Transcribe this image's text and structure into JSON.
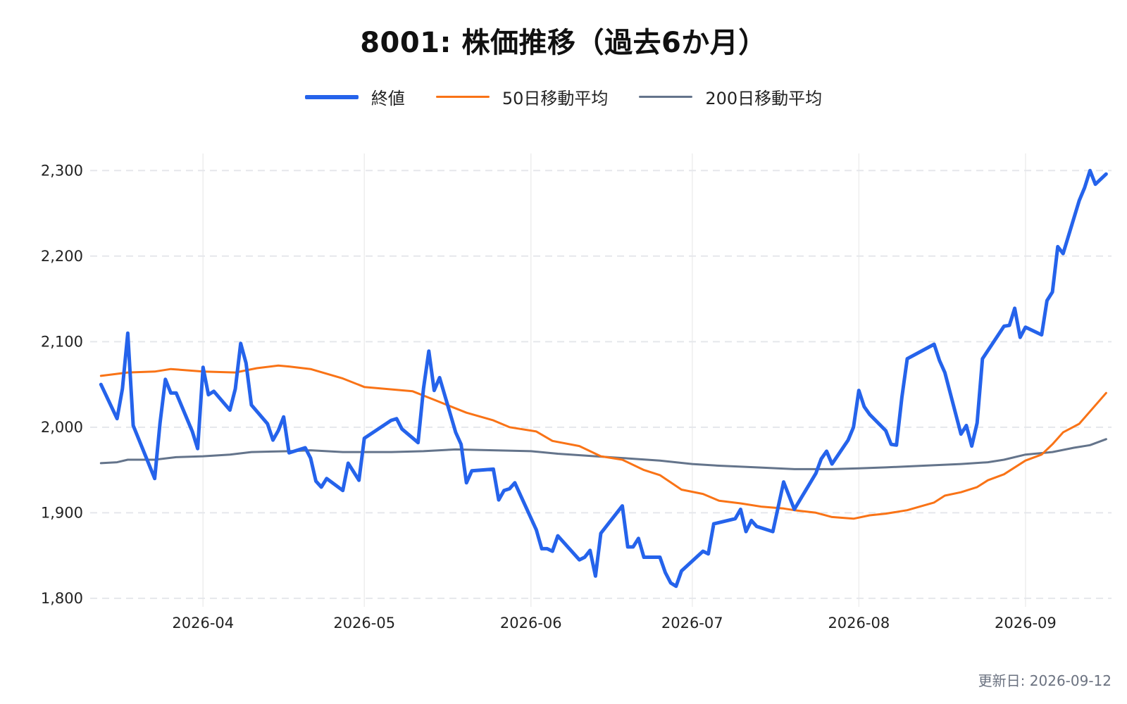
{
  "header": {
    "title": "8001: 株価推移（過去6か月）"
  },
  "footer": {
    "updated_label": "更新日: 2026-09-12"
  },
  "colors": {
    "close": "#2563eb",
    "ma50": "#f97316",
    "ma200": "#64748b",
    "grid": "#e5e7eb"
  },
  "chart_data": {
    "type": "line",
    "title": "8001: 株価推移（過去6か月）",
    "xlabel": "",
    "ylabel": "",
    "xlim": [
      "2026-03-11",
      "2026-09-17"
    ],
    "ylim": [
      1790,
      2320
    ],
    "grid": true,
    "legend_position": "top-center",
    "x_ticks": [
      "2026-04",
      "2026-05",
      "2026-06",
      "2026-07",
      "2026-08",
      "2026-09"
    ],
    "y_ticks": [
      1800,
      1900,
      2000,
      2100,
      2200,
      2300
    ],
    "y_tick_labels": [
      "1,800",
      "1,900",
      "2,000",
      "2,100",
      "2,200",
      "2,300"
    ],
    "series": [
      {
        "key": "close",
        "name": "終値",
        "color": "#2563eb",
        "points": [
          [
            "2026-03-13",
            2050
          ],
          [
            "2026-03-16",
            2010
          ],
          [
            "2026-03-17",
            2045
          ],
          [
            "2026-03-18",
            2110
          ],
          [
            "2026-03-19",
            2002
          ],
          [
            "2026-03-23",
            1940
          ],
          [
            "2026-03-24",
            2005
          ],
          [
            "2026-03-25",
            2056
          ],
          [
            "2026-03-26",
            2040
          ],
          [
            "2026-03-27",
            2040
          ],
          [
            "2026-03-30",
            1995
          ],
          [
            "2026-03-31",
            1975
          ],
          [
            "2026-04-01",
            2070
          ],
          [
            "2026-04-02",
            2038
          ],
          [
            "2026-04-03",
            2042
          ],
          [
            "2026-04-06",
            2020
          ],
          [
            "2026-04-07",
            2045
          ],
          [
            "2026-04-08",
            2098
          ],
          [
            "2026-04-09",
            2075
          ],
          [
            "2026-04-10",
            2026
          ],
          [
            "2026-04-13",
            2004
          ],
          [
            "2026-04-14",
            1985
          ],
          [
            "2026-04-15",
            1996
          ],
          [
            "2026-04-16",
            2012
          ],
          [
            "2026-04-17",
            1970
          ],
          [
            "2026-04-20",
            1976
          ],
          [
            "2026-04-21",
            1964
          ],
          [
            "2026-04-22",
            1937
          ],
          [
            "2026-04-23",
            1930
          ],
          [
            "2026-04-24",
            1940
          ],
          [
            "2026-04-27",
            1926
          ],
          [
            "2026-04-28",
            1958
          ],
          [
            "2026-04-30",
            1938
          ],
          [
            "2026-05-01",
            1987
          ],
          [
            "2026-05-06",
            2008
          ],
          [
            "2026-05-07",
            2010
          ],
          [
            "2026-05-08",
            1998
          ],
          [
            "2026-05-11",
            1982
          ],
          [
            "2026-05-12",
            2045
          ],
          [
            "2026-05-13",
            2089
          ],
          [
            "2026-05-14",
            2043
          ],
          [
            "2026-05-15",
            2058
          ],
          [
            "2026-05-18",
            1994
          ],
          [
            "2026-05-19",
            1980
          ],
          [
            "2026-05-20",
            1935
          ],
          [
            "2026-05-21",
            1949
          ],
          [
            "2026-05-25",
            1951
          ],
          [
            "2026-05-26",
            1915
          ],
          [
            "2026-05-27",
            1926
          ],
          [
            "2026-05-28",
            1928
          ],
          [
            "2026-05-29",
            1935
          ],
          [
            "2026-06-02",
            1880
          ],
          [
            "2026-06-03",
            1858
          ],
          [
            "2026-06-04",
            1858
          ],
          [
            "2026-06-05",
            1855
          ],
          [
            "2026-06-06",
            1873
          ],
          [
            "2026-06-10",
            1845
          ],
          [
            "2026-06-11",
            1848
          ],
          [
            "2026-06-12",
            1856
          ],
          [
            "2026-06-13",
            1826
          ],
          [
            "2026-06-14",
            1876
          ],
          [
            "2026-06-18",
            1908
          ],
          [
            "2026-06-19",
            1860
          ],
          [
            "2026-06-20",
            1860
          ],
          [
            "2026-06-21",
            1870
          ],
          [
            "2026-06-22",
            1848
          ],
          [
            "2026-06-25",
            1848
          ],
          [
            "2026-06-26",
            1830
          ],
          [
            "2026-06-27",
            1818
          ],
          [
            "2026-06-28",
            1814
          ],
          [
            "2026-06-29",
            1832
          ],
          [
            "2026-07-03",
            1855
          ],
          [
            "2026-07-04",
            1852
          ],
          [
            "2026-07-05",
            1887
          ],
          [
            "2026-07-09",
            1893
          ],
          [
            "2026-07-10",
            1904
          ],
          [
            "2026-07-11",
            1878
          ],
          [
            "2026-07-12",
            1891
          ],
          [
            "2026-07-13",
            1884
          ],
          [
            "2026-07-16",
            1878
          ],
          [
            "2026-07-18",
            1936
          ],
          [
            "2026-07-20",
            1904
          ],
          [
            "2026-07-24",
            1946
          ],
          [
            "2026-07-25",
            1963
          ],
          [
            "2026-07-26",
            1972
          ],
          [
            "2026-07-27",
            1957
          ],
          [
            "2026-07-30",
            1985
          ],
          [
            "2026-07-31",
            2000
          ],
          [
            "2026-08-01",
            2043
          ],
          [
            "2026-08-02",
            2024
          ],
          [
            "2026-08-03",
            2015
          ],
          [
            "2026-08-06",
            1996
          ],
          [
            "2026-08-07",
            1980
          ],
          [
            "2026-08-08",
            1979
          ],
          [
            "2026-08-09",
            2035
          ],
          [
            "2026-08-10",
            2080
          ],
          [
            "2026-08-15",
            2097
          ],
          [
            "2026-08-16",
            2078
          ],
          [
            "2026-08-17",
            2064
          ],
          [
            "2026-08-20",
            1992
          ],
          [
            "2026-08-21",
            2002
          ],
          [
            "2026-08-22",
            1978
          ],
          [
            "2026-08-23",
            2005
          ],
          [
            "2026-08-24",
            2080
          ],
          [
            "2026-08-28",
            2118
          ],
          [
            "2026-08-29",
            2119
          ],
          [
            "2026-08-30",
            2139
          ],
          [
            "2026-08-31",
            2105
          ],
          [
            "2026-09-01",
            2117
          ],
          [
            "2026-09-04",
            2108
          ],
          [
            "2026-09-05",
            2148
          ],
          [
            "2026-09-06",
            2158
          ],
          [
            "2026-09-07",
            2211
          ],
          [
            "2026-09-08",
            2203
          ],
          [
            "2026-09-11",
            2265
          ],
          [
            "2026-09-12",
            2280
          ],
          [
            "2026-09-13",
            2300
          ],
          [
            "2026-09-14",
            2284
          ],
          [
            "2026-09-16",
            2296
          ]
        ]
      },
      {
        "key": "ma50",
        "name": "50日移動平均",
        "color": "#f97316",
        "points": [
          [
            "2026-03-13",
            2060
          ],
          [
            "2026-03-18",
            2064
          ],
          [
            "2026-03-23",
            2065
          ],
          [
            "2026-03-26",
            2068
          ],
          [
            "2026-04-01",
            2065
          ],
          [
            "2026-04-07",
            2064
          ],
          [
            "2026-04-11",
            2069
          ],
          [
            "2026-04-15",
            2072
          ],
          [
            "2026-04-17",
            2071
          ],
          [
            "2026-04-21",
            2068
          ],
          [
            "2026-04-27",
            2057
          ],
          [
            "2026-05-01",
            2047
          ],
          [
            "2026-05-10",
            2042
          ],
          [
            "2026-05-14",
            2032
          ],
          [
            "2026-05-20",
            2017
          ],
          [
            "2026-05-25",
            2008
          ],
          [
            "2026-05-28",
            2000
          ],
          [
            "2026-06-02",
            1995
          ],
          [
            "2026-06-05",
            1984
          ],
          [
            "2026-06-10",
            1978
          ],
          [
            "2026-06-14",
            1966
          ],
          [
            "2026-06-18",
            1962
          ],
          [
            "2026-06-22",
            1950
          ],
          [
            "2026-06-25",
            1944
          ],
          [
            "2026-06-29",
            1927
          ],
          [
            "2026-07-03",
            1922
          ],
          [
            "2026-07-06",
            1914
          ],
          [
            "2026-07-10",
            1911
          ],
          [
            "2026-07-14",
            1907
          ],
          [
            "2026-07-18",
            1905
          ],
          [
            "2026-07-20",
            1903
          ],
          [
            "2026-07-24",
            1900
          ],
          [
            "2026-07-27",
            1895
          ],
          [
            "2026-07-31",
            1893
          ],
          [
            "2026-08-03",
            1897
          ],
          [
            "2026-08-06",
            1899
          ],
          [
            "2026-08-10",
            1903
          ],
          [
            "2026-08-15",
            1912
          ],
          [
            "2026-08-17",
            1920
          ],
          [
            "2026-08-20",
            1924
          ],
          [
            "2026-08-23",
            1930
          ],
          [
            "2026-08-25",
            1938
          ],
          [
            "2026-08-28",
            1945
          ],
          [
            "2026-09-01",
            1961
          ],
          [
            "2026-09-04",
            1968
          ],
          [
            "2026-09-06",
            1980
          ],
          [
            "2026-09-08",
            1994
          ],
          [
            "2026-09-11",
            2004
          ],
          [
            "2026-09-16",
            2040
          ]
        ]
      },
      {
        "key": "ma200",
        "name": "200日移動平均",
        "color": "#64748b",
        "points": [
          [
            "2026-03-13",
            1958
          ],
          [
            "2026-03-16",
            1959
          ],
          [
            "2026-03-18",
            1962
          ],
          [
            "2026-03-23",
            1962
          ],
          [
            "2026-03-27",
            1965
          ],
          [
            "2026-04-01",
            1966
          ],
          [
            "2026-04-06",
            1968
          ],
          [
            "2026-04-10",
            1971
          ],
          [
            "2026-04-17",
            1972
          ],
          [
            "2026-04-21",
            1973
          ],
          [
            "2026-04-27",
            1971
          ],
          [
            "2026-05-06",
            1971
          ],
          [
            "2026-05-12",
            1972
          ],
          [
            "2026-05-18",
            1974
          ],
          [
            "2026-05-25",
            1973
          ],
          [
            "2026-06-01",
            1972
          ],
          [
            "2026-06-06",
            1969
          ],
          [
            "2026-06-13",
            1966
          ],
          [
            "2026-06-18",
            1964
          ],
          [
            "2026-06-25",
            1961
          ],
          [
            "2026-07-01",
            1957
          ],
          [
            "2026-07-06",
            1955
          ],
          [
            "2026-07-13",
            1953
          ],
          [
            "2026-07-20",
            1951
          ],
          [
            "2026-07-27",
            1951
          ],
          [
            "2026-08-01",
            1952
          ],
          [
            "2026-08-06",
            1953
          ],
          [
            "2026-08-13",
            1955
          ],
          [
            "2026-08-20",
            1957
          ],
          [
            "2026-08-25",
            1959
          ],
          [
            "2026-08-28",
            1962
          ],
          [
            "2026-09-01",
            1968
          ],
          [
            "2026-09-06",
            1971
          ],
          [
            "2026-09-10",
            1976
          ],
          [
            "2026-09-13",
            1979
          ],
          [
            "2026-09-16",
            1986
          ]
        ]
      }
    ]
  }
}
